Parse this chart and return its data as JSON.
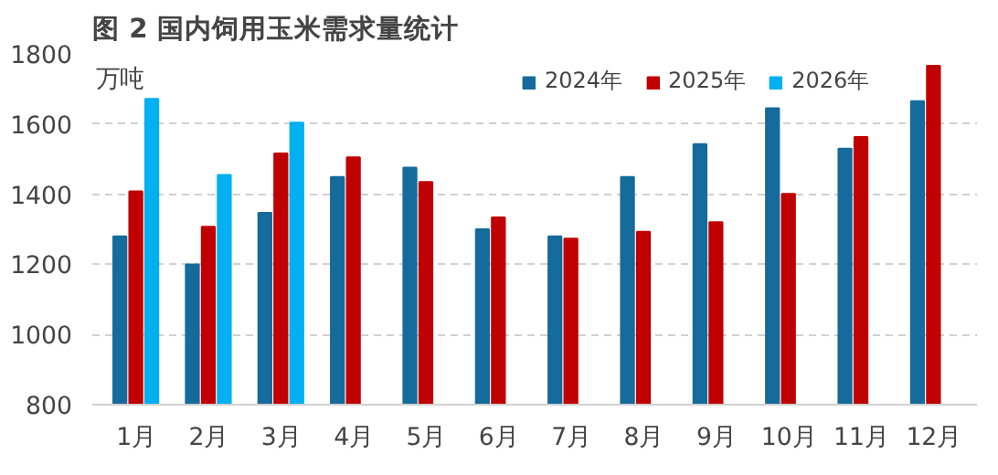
{
  "chart_data": {
    "type": "bar",
    "title": "图 2 国内饲用玉米需求量统计",
    "ylabel": "万吨",
    "categories": [
      "1月",
      "2月",
      "3月",
      "4月",
      "5月",
      "6月",
      "7月",
      "8月",
      "9月",
      "10月",
      "11月",
      "12月"
    ],
    "series": [
      {
        "name": "2024年",
        "color": "#156b9b",
        "values": [
          1280,
          1200,
          1347,
          1449,
          1476,
          1300,
          1280,
          1449,
          1543,
          1645,
          1530,
          1665
        ]
      },
      {
        "name": "2025年",
        "color": "#c00000",
        "values": [
          1408,
          1307,
          1516,
          1505,
          1435,
          1334,
          1273,
          1293,
          1320,
          1401,
          1563,
          1766
        ]
      },
      {
        "name": "2026年",
        "color": "#00b0f0",
        "values": [
          1672,
          1455,
          1604,
          null,
          null,
          null,
          null,
          null,
          null,
          null,
          null,
          null
        ]
      }
    ],
    "ylim": [
      800,
      1800
    ],
    "yticks": [
      800,
      1000,
      1200,
      1400,
      1600,
      1800
    ],
    "grid": "y",
    "legend": "top right"
  }
}
